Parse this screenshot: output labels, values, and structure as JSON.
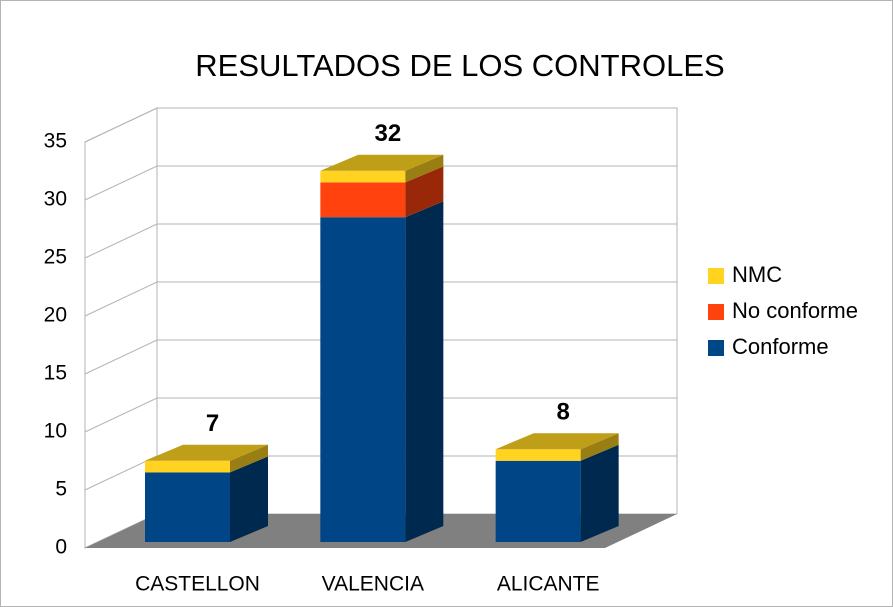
{
  "chart_data": {
    "type": "bar3d_stacked",
    "title": "RESULTADOS DE LOS CONTROLES",
    "categories": [
      "CASTELLON",
      "VALENCIA",
      "ALICANTE"
    ],
    "series": [
      {
        "name": "Conforme",
        "color": "#004586",
        "values": [
          6,
          28,
          7
        ]
      },
      {
        "name": "No conforme",
        "color": "#ff420e",
        "values": [
          0,
          3,
          0
        ]
      },
      {
        "name": "NMC",
        "color": "#ffd320",
        "values": [
          1,
          1,
          1
        ]
      }
    ],
    "total_labels": [
      7,
      32,
      8
    ],
    "ylim": [
      0,
      35
    ],
    "yticks": [
      0,
      5,
      10,
      15,
      20,
      25,
      30,
      35
    ],
    "grid": true,
    "legend": "right"
  }
}
